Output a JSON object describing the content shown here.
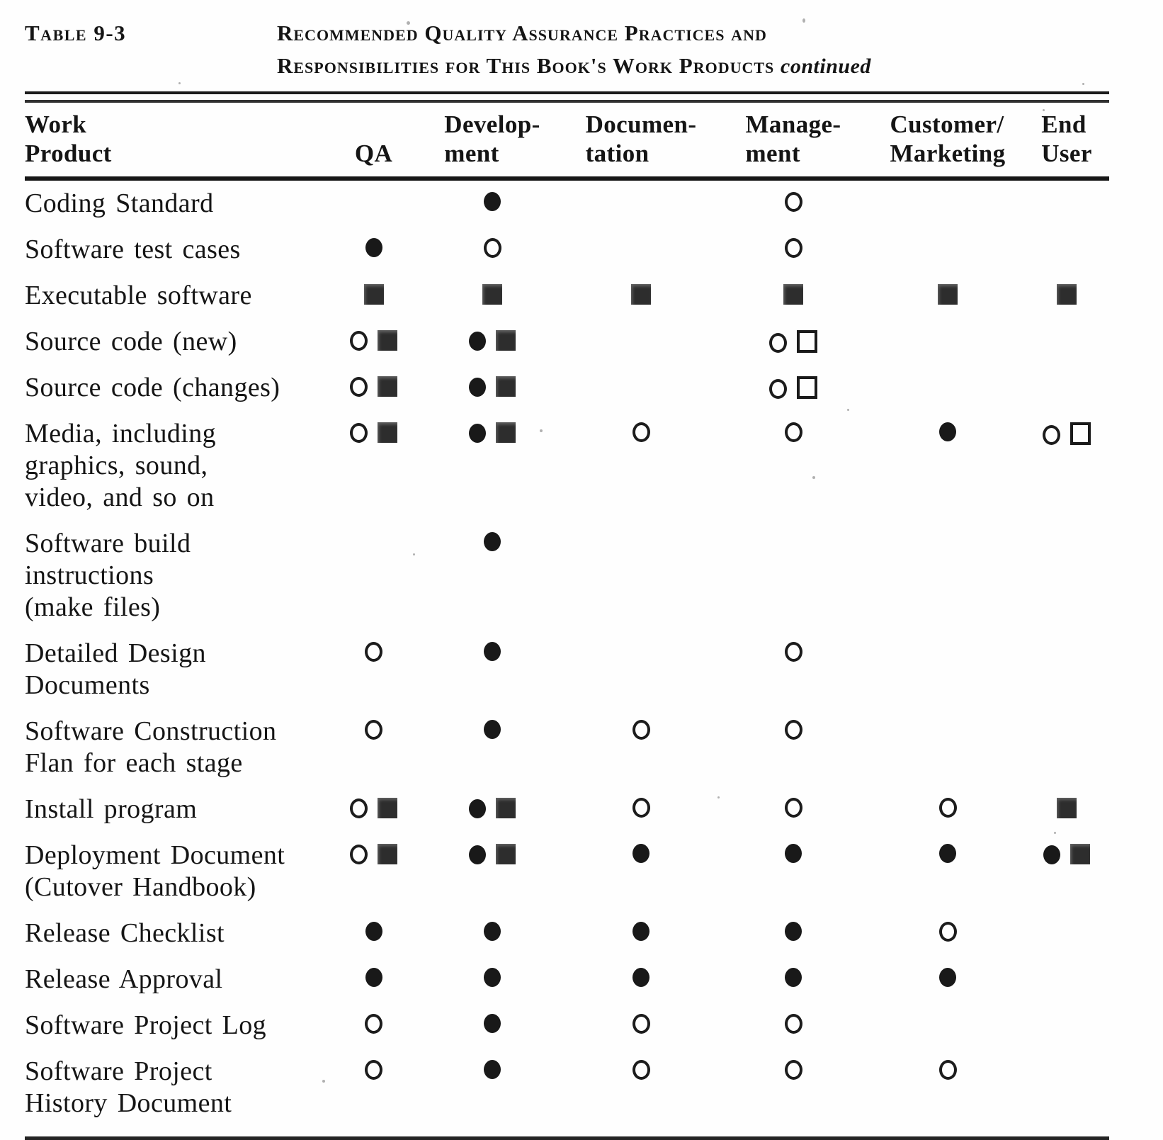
{
  "page": {
    "table_label": "Table 9-3",
    "title_line1": "Recommended Quality Assurance Practices and",
    "title_line2": "Responsibilities for This Book's Work Products",
    "continued_note": "continued"
  },
  "symbols_legend": {
    "filled-circle": "●",
    "open-circle": "○",
    "filled-square": "■",
    "open-square": "□"
  },
  "table": {
    "columns": [
      {
        "id": "work_product",
        "label_lines": [
          "Work",
          "Product"
        ]
      },
      {
        "id": "qa",
        "label_lines": [
          "QA"
        ]
      },
      {
        "id": "development",
        "label_lines": [
          "Develop-",
          "ment"
        ]
      },
      {
        "id": "documentation",
        "label_lines": [
          "Documen-",
          "tation"
        ]
      },
      {
        "id": "management",
        "label_lines": [
          "Manage-",
          "ment"
        ]
      },
      {
        "id": "customer_marketing",
        "label_lines": [
          "Customer/",
          "Marketing"
        ]
      },
      {
        "id": "end_user",
        "label_lines": [
          "End",
          "User"
        ]
      }
    ],
    "rows": [
      {
        "product_lines": [
          "Coding Standard"
        ],
        "cells": {
          "qa": [],
          "development": [
            "filled-circle"
          ],
          "documentation": [],
          "management": [
            "open-circle"
          ],
          "customer_marketing": [],
          "end_user": []
        }
      },
      {
        "product_lines": [
          "Software test cases"
        ],
        "cells": {
          "qa": [
            "filled-circle"
          ],
          "development": [
            "open-circle"
          ],
          "documentation": [],
          "management": [
            "open-circle"
          ],
          "customer_marketing": [],
          "end_user": []
        }
      },
      {
        "product_lines": [
          "Executable software"
        ],
        "cells": {
          "qa": [
            "filled-square"
          ],
          "development": [
            "filled-square"
          ],
          "documentation": [
            "filled-square"
          ],
          "management": [
            "filled-square"
          ],
          "customer_marketing": [
            "filled-square"
          ],
          "end_user": [
            "filled-square"
          ]
        }
      },
      {
        "product_lines": [
          "Source code (new)"
        ],
        "cells": {
          "qa": [
            "open-circle",
            "filled-square"
          ],
          "development": [
            "filled-circle",
            "filled-square"
          ],
          "documentation": [],
          "management": [
            "open-circle",
            "open-square"
          ],
          "customer_marketing": [],
          "end_user": []
        }
      },
      {
        "product_lines": [
          "Source code (changes)"
        ],
        "cells": {
          "qa": [
            "open-circle",
            "filled-square"
          ],
          "development": [
            "filled-circle",
            "filled-square"
          ],
          "documentation": [],
          "management": [
            "open-circle",
            "open-square"
          ],
          "customer_marketing": [],
          "end_user": []
        }
      },
      {
        "product_lines": [
          "Media, including",
          "graphics, sound,",
          "video, and so on"
        ],
        "cells": {
          "qa": [
            "open-circle",
            "filled-square"
          ],
          "development": [
            "filled-circle",
            "filled-square"
          ],
          "documentation": [
            "open-circle"
          ],
          "management": [
            "open-circle"
          ],
          "customer_marketing": [
            "filled-circle"
          ],
          "end_user": [
            "open-circle",
            "open-square"
          ]
        }
      },
      {
        "product_lines": [
          "Software build",
          "instructions",
          "(make files)"
        ],
        "cells": {
          "qa": [],
          "development": [
            "filled-circle"
          ],
          "documentation": [],
          "management": [],
          "customer_marketing": [],
          "end_user": []
        }
      },
      {
        "product_lines": [
          "Detailed Design",
          "Documents"
        ],
        "cells": {
          "qa": [
            "open-circle"
          ],
          "development": [
            "filled-circle"
          ],
          "documentation": [],
          "management": [
            "open-circle"
          ],
          "customer_marketing": [],
          "end_user": []
        }
      },
      {
        "product_lines": [
          "Software Construction",
          "Flan for each stage"
        ],
        "cells": {
          "qa": [
            "open-circle"
          ],
          "development": [
            "filled-circle"
          ],
          "documentation": [
            "open-circle"
          ],
          "management": [
            "open-circle"
          ],
          "customer_marketing": [],
          "end_user": []
        }
      },
      {
        "product_lines": [
          "Install program"
        ],
        "cells": {
          "qa": [
            "open-circle",
            "filled-square"
          ],
          "development": [
            "filled-circle",
            "filled-square"
          ],
          "documentation": [
            "open-circle"
          ],
          "management": [
            "open-circle"
          ],
          "customer_marketing": [
            "open-circle"
          ],
          "end_user": [
            "filled-square"
          ]
        }
      },
      {
        "product_lines": [
          "Deployment Document",
          "(Cutover Handbook)"
        ],
        "cells": {
          "qa": [
            "open-circle",
            "filled-square"
          ],
          "development": [
            "filled-circle",
            "filled-square"
          ],
          "documentation": [
            "filled-circle"
          ],
          "management": [
            "filled-circle"
          ],
          "customer_marketing": [
            "filled-circle"
          ],
          "end_user": [
            "filled-circle",
            "filled-square"
          ]
        }
      },
      {
        "product_lines": [
          "Release Checklist"
        ],
        "cells": {
          "qa": [
            "filled-circle"
          ],
          "development": [
            "filled-circle"
          ],
          "documentation": [
            "filled-circle"
          ],
          "management": [
            "filled-circle"
          ],
          "customer_marketing": [
            "open-circle"
          ],
          "end_user": []
        }
      },
      {
        "product_lines": [
          "Release Approval"
        ],
        "cells": {
          "qa": [
            "filled-circle"
          ],
          "development": [
            "filled-circle"
          ],
          "documentation": [
            "filled-circle"
          ],
          "management": [
            "filled-circle"
          ],
          "customer_marketing": [
            "filled-circle"
          ],
          "end_user": []
        }
      },
      {
        "product_lines": [
          "Software Project Log"
        ],
        "cells": {
          "qa": [
            "open-circle"
          ],
          "development": [
            "filled-circle"
          ],
          "documentation": [
            "open-circle"
          ],
          "management": [
            "open-circle"
          ],
          "customer_marketing": [],
          "end_user": []
        }
      },
      {
        "product_lines": [
          "Software Project",
          "History Document"
        ],
        "cells": {
          "qa": [
            "open-circle"
          ],
          "development": [
            "filled-circle"
          ],
          "documentation": [
            "open-circle"
          ],
          "management": [
            "open-circle"
          ],
          "customer_marketing": [
            "open-circle"
          ],
          "end_user": []
        }
      }
    ]
  }
}
